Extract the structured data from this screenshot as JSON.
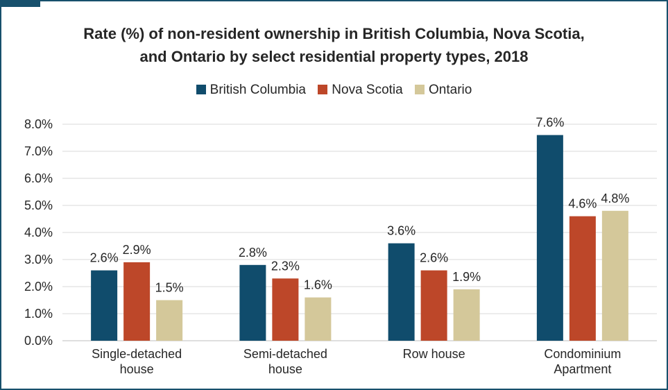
{
  "chart_data": {
    "type": "bar",
    "title_lines": [
      "Rate (%) of non-resident ownership in British Columbia, Nova Scotia,",
      "and Ontario by select residential property types, 2018"
    ],
    "xlabel": "",
    "ylabel": "",
    "categories": [
      [
        "Single-detached",
        "house"
      ],
      [
        "Semi-detached",
        "house"
      ],
      [
        "Row house"
      ],
      [
        "Condominium",
        "Apartment"
      ]
    ],
    "series": [
      {
        "name": "British Columbia",
        "color": "#104c6c",
        "values": [
          2.6,
          2.8,
          3.6,
          7.6
        ]
      },
      {
        "name": "Nova Scotia",
        "color": "#bd4729",
        "values": [
          2.9,
          2.3,
          2.6,
          4.6
        ]
      },
      {
        "name": "Ontario",
        "color": "#d4c89a",
        "values": [
          1.5,
          1.6,
          1.9,
          4.8
        ]
      }
    ],
    "ylim": [
      0,
      8
    ],
    "yticks": [
      0,
      1,
      2,
      3,
      4,
      5,
      6,
      7,
      8
    ],
    "ytick_labels": [
      "0.0%",
      "1.0%",
      "2.0%",
      "3.0%",
      "4.0%",
      "5.0%",
      "6.0%",
      "7.0%",
      "8.0%"
    ],
    "value_suffix": "%",
    "grid": true,
    "legend_position": "top-center"
  }
}
